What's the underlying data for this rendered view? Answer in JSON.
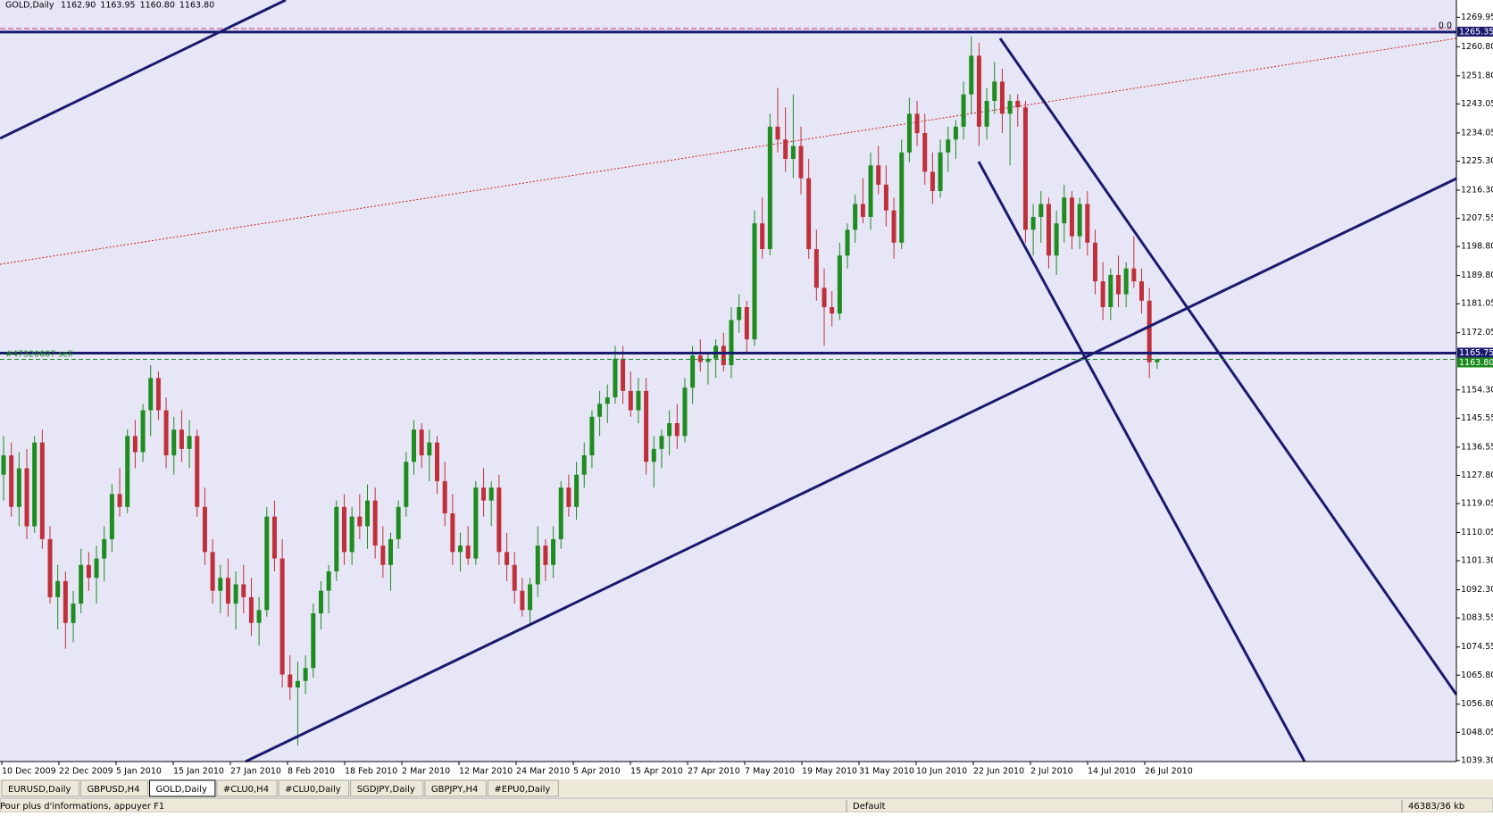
{
  "header": {
    "symbol": "GOLD,Daily",
    "ohlc": [
      "1162.90",
      "1163.95",
      "1160.80",
      "1163.80"
    ]
  },
  "chart_data": {
    "type": "candlestick",
    "up_color": "#1e8c1e",
    "down_color": "#c0303a",
    "ylim": [
      1039.0,
      1275.3
    ],
    "yticks": [
      {
        "value": 1269.95,
        "label": "1269.95"
      },
      {
        "value": 1260.8,
        "label": "1260.80"
      },
      {
        "value": 1251.8,
        "label": "1251.80"
      },
      {
        "value": 1243.05,
        "label": "1243.05"
      },
      {
        "value": 1234.05,
        "label": "1234.05"
      },
      {
        "value": 1225.3,
        "label": "1225.30"
      },
      {
        "value": 1216.3,
        "label": "1216.30"
      },
      {
        "value": 1207.55,
        "label": "1207.55"
      },
      {
        "value": 1198.8,
        "label": "1198.80"
      },
      {
        "value": 1189.8,
        "label": "1189.80"
      },
      {
        "value": 1181.05,
        "label": "1181.05"
      },
      {
        "value": 1172.05,
        "label": "1172.05"
      },
      {
        "value": 1154.3,
        "label": "1154.30"
      },
      {
        "value": 1145.55,
        "label": "1145.55"
      },
      {
        "value": 1136.55,
        "label": "1136.55"
      },
      {
        "value": 1127.8,
        "label": "1127.80"
      },
      {
        "value": 1119.05,
        "label": "1119.05"
      },
      {
        "value": 1110.05,
        "label": "1110.05"
      },
      {
        "value": 1101.3,
        "label": "1101.30"
      },
      {
        "value": 1092.3,
        "label": "1092.30"
      },
      {
        "value": 1083.55,
        "label": "1083.55"
      },
      {
        "value": 1074.55,
        "label": "1074.55"
      },
      {
        "value": 1065.8,
        "label": "1065.80"
      },
      {
        "value": 1056.8,
        "label": "1056.80"
      },
      {
        "value": 1048.05,
        "label": "1048.05"
      },
      {
        "value": 1039.3,
        "label": "1039.30"
      }
    ],
    "levels": [
      {
        "value": 1265.35,
        "label": "1265.35",
        "color": "#1a1a6e"
      },
      {
        "value": 1165.75,
        "label": "1165.75",
        "color": "#1a1a6e"
      },
      {
        "value": 1163.8,
        "label": "1163.80",
        "color": "#1a8a1a"
      }
    ],
    "date_labels": [
      "10 Dec 2009",
      "22 Dec 2009",
      "5 Jan 2010",
      "15 Jan 2010",
      "27 Jan 2010",
      "8 Feb 2010",
      "18 Feb 2010",
      "2 Mar 2010",
      "12 Mar 2010",
      "24 Mar 2010",
      "5 Apr 2010",
      "15 Apr 2010",
      "27 Apr 2010",
      "7 May 2010",
      "19 May 2010",
      "31 May 2010",
      "10 Jun 2010",
      "22 Jun 2010",
      "2 Jul 2010",
      "14 Jul 2010",
      "26 Jul 2010"
    ],
    "order_label": "#47320607 sell",
    "fib_label": "0.0",
    "ohlc": [
      [
        1128,
        1140,
        1120,
        1134
      ],
      [
        1134,
        1138,
        1115,
        1118
      ],
      [
        1118,
        1135,
        1112,
        1130
      ],
      [
        1130,
        1136,
        1108,
        1112
      ],
      [
        1112,
        1140,
        1110,
        1138
      ],
      [
        1138,
        1142,
        1105,
        1108
      ],
      [
        1108,
        1112,
        1088,
        1090
      ],
      [
        1090,
        1100,
        1080,
        1095
      ],
      [
        1095,
        1098,
        1074,
        1082
      ],
      [
        1082,
        1092,
        1076,
        1088
      ],
      [
        1088,
        1105,
        1085,
        1100
      ],
      [
        1100,
        1104,
        1092,
        1096
      ],
      [
        1096,
        1106,
        1088,
        1102
      ],
      [
        1102,
        1112,
        1095,
        1108
      ],
      [
        1108,
        1125,
        1104,
        1122
      ],
      [
        1122,
        1130,
        1115,
        1118
      ],
      [
        1118,
        1142,
        1116,
        1140
      ],
      [
        1140,
        1145,
        1130,
        1135
      ],
      [
        1135,
        1150,
        1132,
        1148
      ],
      [
        1148,
        1162,
        1140,
        1158
      ],
      [
        1158,
        1160,
        1145,
        1148
      ],
      [
        1148,
        1152,
        1130,
        1134
      ],
      [
        1134,
        1146,
        1128,
        1142
      ],
      [
        1142,
        1148,
        1132,
        1136
      ],
      [
        1136,
        1145,
        1130,
        1140
      ],
      [
        1140,
        1142,
        1115,
        1118
      ],
      [
        1118,
        1124,
        1100,
        1104
      ],
      [
        1104,
        1108,
        1088,
        1092
      ],
      [
        1092,
        1100,
        1085,
        1096
      ],
      [
        1096,
        1102,
        1084,
        1088
      ],
      [
        1088,
        1098,
        1080,
        1094
      ],
      [
        1094,
        1100,
        1085,
        1090
      ],
      [
        1090,
        1096,
        1078,
        1082
      ],
      [
        1082,
        1090,
        1075,
        1086
      ],
      [
        1086,
        1118,
        1084,
        1115
      ],
      [
        1115,
        1120,
        1098,
        1102
      ],
      [
        1102,
        1108,
        1062,
        1066
      ],
      [
        1066,
        1072,
        1058,
        1062
      ],
      [
        1062,
        1070,
        1044,
        1064
      ],
      [
        1064,
        1072,
        1060,
        1068
      ],
      [
        1068,
        1088,
        1065,
        1085
      ],
      [
        1085,
        1095,
        1080,
        1092
      ],
      [
        1092,
        1100,
        1085,
        1098
      ],
      [
        1098,
        1120,
        1095,
        1118
      ],
      [
        1118,
        1122,
        1100,
        1104
      ],
      [
        1104,
        1118,
        1100,
        1115
      ],
      [
        1115,
        1122,
        1108,
        1112
      ],
      [
        1112,
        1125,
        1105,
        1120
      ],
      [
        1120,
        1124,
        1102,
        1106
      ],
      [
        1106,
        1112,
        1096,
        1100
      ],
      [
        1100,
        1110,
        1092,
        1108
      ],
      [
        1108,
        1120,
        1105,
        1118
      ],
      [
        1118,
        1135,
        1115,
        1132
      ],
      [
        1132,
        1145,
        1128,
        1142
      ],
      [
        1142,
        1144,
        1130,
        1134
      ],
      [
        1134,
        1142,
        1126,
        1138
      ],
      [
        1138,
        1140,
        1122,
        1126
      ],
      [
        1126,
        1132,
        1112,
        1116
      ],
      [
        1116,
        1122,
        1100,
        1104
      ],
      [
        1104,
        1110,
        1098,
        1106
      ],
      [
        1106,
        1112,
        1100,
        1102
      ],
      [
        1102,
        1126,
        1100,
        1124
      ],
      [
        1124,
        1130,
        1115,
        1120
      ],
      [
        1120,
        1126,
        1112,
        1124
      ],
      [
        1124,
        1128,
        1100,
        1104
      ],
      [
        1104,
        1110,
        1095,
        1100
      ],
      [
        1100,
        1104,
        1088,
        1092
      ],
      [
        1092,
        1096,
        1084,
        1086
      ],
      [
        1086,
        1096,
        1082,
        1094
      ],
      [
        1094,
        1112,
        1090,
        1106
      ],
      [
        1106,
        1108,
        1095,
        1100
      ],
      [
        1100,
        1112,
        1096,
        1108
      ],
      [
        1108,
        1126,
        1105,
        1124
      ],
      [
        1124,
        1128,
        1115,
        1118
      ],
      [
        1118,
        1132,
        1114,
        1128
      ],
      [
        1128,
        1138,
        1124,
        1134
      ],
      [
        1134,
        1148,
        1130,
        1146
      ],
      [
        1146,
        1154,
        1140,
        1150
      ],
      [
        1150,
        1156,
        1144,
        1152
      ],
      [
        1152,
        1168,
        1150,
        1164
      ],
      [
        1164,
        1168,
        1150,
        1154
      ],
      [
        1154,
        1160,
        1146,
        1148
      ],
      [
        1148,
        1158,
        1144,
        1154
      ],
      [
        1154,
        1158,
        1128,
        1132
      ],
      [
        1132,
        1140,
        1124,
        1136
      ],
      [
        1136,
        1142,
        1130,
        1140
      ],
      [
        1140,
        1148,
        1134,
        1144
      ],
      [
        1144,
        1150,
        1136,
        1140
      ],
      [
        1140,
        1158,
        1138,
        1155
      ],
      [
        1155,
        1168,
        1150,
        1165
      ],
      [
        1165,
        1170,
        1160,
        1163
      ],
      [
        1163,
        1166,
        1156,
        1164
      ],
      [
        1164,
        1170,
        1158,
        1168
      ],
      [
        1168,
        1172,
        1160,
        1162
      ],
      [
        1162,
        1180,
        1158,
        1176
      ],
      [
        1176,
        1184,
        1172,
        1180
      ],
      [
        1180,
        1182,
        1166,
        1170
      ],
      [
        1170,
        1210,
        1168,
        1206
      ],
      [
        1206,
        1214,
        1195,
        1198
      ],
      [
        1198,
        1240,
        1196,
        1236
      ],
      [
        1236,
        1248,
        1228,
        1232
      ],
      [
        1232,
        1242,
        1222,
        1226
      ],
      [
        1226,
        1246,
        1220,
        1230
      ],
      [
        1230,
        1236,
        1215,
        1220
      ],
      [
        1220,
        1226,
        1195,
        1198
      ],
      [
        1198,
        1204,
        1182,
        1186
      ],
      [
        1186,
        1192,
        1168,
        1180
      ],
      [
        1180,
        1185,
        1174,
        1178
      ],
      [
        1178,
        1200,
        1176,
        1196
      ],
      [
        1196,
        1206,
        1192,
        1204
      ],
      [
        1204,
        1215,
        1200,
        1212
      ],
      [
        1212,
        1220,
        1206,
        1208
      ],
      [
        1208,
        1228,
        1204,
        1224
      ],
      [
        1224,
        1230,
        1215,
        1218
      ],
      [
        1218,
        1224,
        1205,
        1210
      ],
      [
        1210,
        1214,
        1195,
        1200
      ],
      [
        1200,
        1232,
        1198,
        1228
      ],
      [
        1228,
        1245,
        1225,
        1240
      ],
      [
        1240,
        1244,
        1230,
        1234
      ],
      [
        1234,
        1240,
        1218,
        1222
      ],
      [
        1222,
        1228,
        1212,
        1216
      ],
      [
        1216,
        1232,
        1214,
        1228
      ],
      [
        1228,
        1236,
        1222,
        1232
      ],
      [
        1232,
        1238,
        1226,
        1236
      ],
      [
        1236,
        1250,
        1232,
        1246
      ],
      [
        1246,
        1264,
        1240,
        1258
      ],
      [
        1258,
        1262,
        1230,
        1236
      ],
      [
        1236,
        1248,
        1232,
        1244
      ],
      [
        1244,
        1256,
        1240,
        1250
      ],
      [
        1250,
        1254,
        1234,
        1240
      ],
      [
        1240,
        1246,
        1224,
        1244
      ],
      [
        1244,
        1246,
        1236,
        1242
      ],
      [
        1242,
        1244,
        1200,
        1204
      ],
      [
        1204,
        1212,
        1196,
        1208
      ],
      [
        1208,
        1216,
        1200,
        1212
      ],
      [
        1212,
        1214,
        1192,
        1196
      ],
      [
        1196,
        1210,
        1190,
        1206
      ],
      [
        1206,
        1218,
        1200,
        1214
      ],
      [
        1214,
        1216,
        1198,
        1202
      ],
      [
        1202,
        1214,
        1198,
        1212
      ],
      [
        1212,
        1216,
        1196,
        1200
      ],
      [
        1200,
        1204,
        1184,
        1188
      ],
      [
        1188,
        1194,
        1176,
        1180
      ],
      [
        1180,
        1192,
        1176,
        1190
      ],
      [
        1190,
        1196,
        1180,
        1184
      ],
      [
        1184,
        1194,
        1180,
        1192
      ],
      [
        1192,
        1202,
        1186,
        1188
      ],
      [
        1188,
        1192,
        1178,
        1182
      ],
      [
        1182,
        1186,
        1158,
        1162.9
      ],
      [
        1162.9,
        1163.95,
        1160.8,
        1163.8
      ]
    ]
  },
  "tabs": [
    "EURUSD,Daily",
    "GBPUSD,H4",
    "GOLD,Daily",
    "#CLU0,H4",
    "#CLU0,Daily",
    "SGDJPY,Daily",
    "GBPJPY,H4",
    "#EPU0,Daily"
  ],
  "status": {
    "hint": "Pour plus d'informations, appuyer F1",
    "profile": "Default",
    "traffic": "46383/36 kb"
  }
}
